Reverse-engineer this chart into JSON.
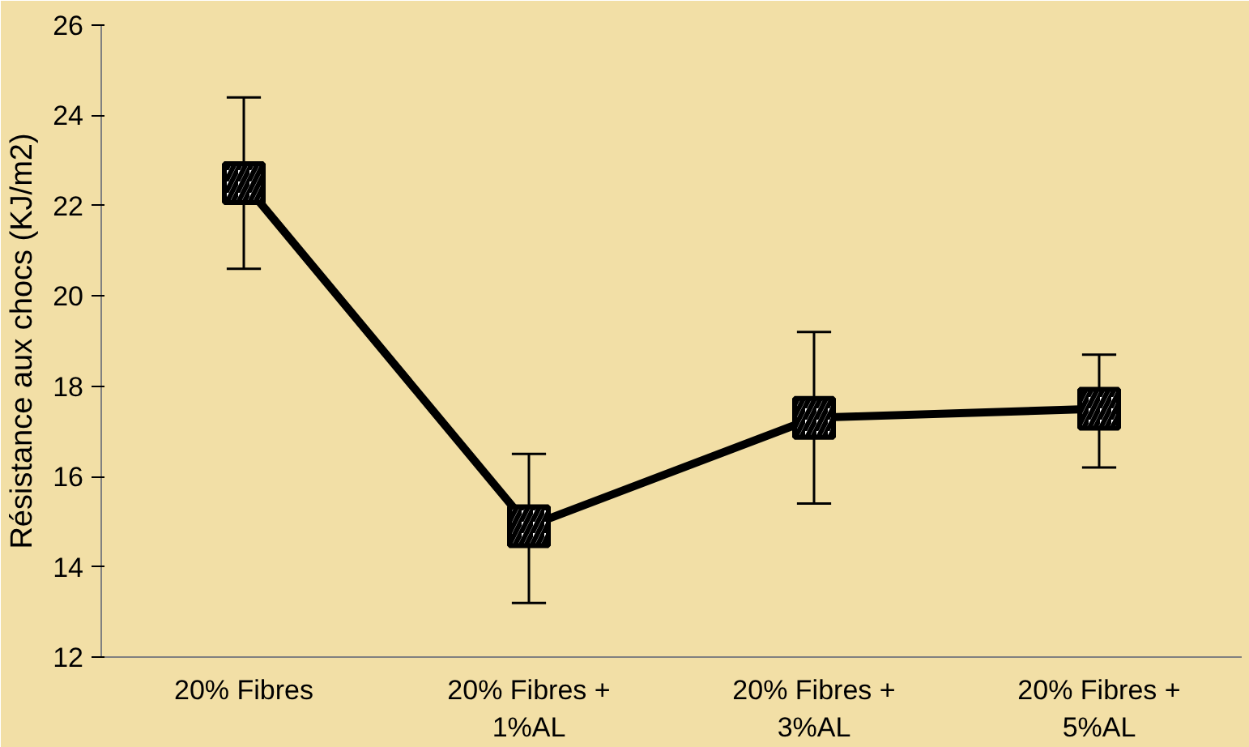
{
  "chart_data": {
    "type": "line",
    "ylabel": "Résistance aux chocs (KJ/m2)",
    "categories": [
      "20% Fibres",
      "20% Fibres +\n1%AL",
      "20% Fibres +\n3%AL",
      "20% Fibres +\n5%AL"
    ],
    "series": [
      {
        "color": "#000000",
        "values": [
          22.5,
          14.9,
          17.3,
          17.5
        ],
        "errors": [
          [
            20.6,
            24.4
          ],
          [
            13.2,
            16.5
          ],
          [
            15.4,
            19.2
          ],
          [
            16.2,
            18.7
          ]
        ]
      }
    ],
    "ylim": [
      12,
      26
    ],
    "yticks": [
      12,
      14,
      16,
      18,
      20,
      22,
      24,
      26
    ],
    "grid": false,
    "marker": "square",
    "line_style": "solid"
  }
}
